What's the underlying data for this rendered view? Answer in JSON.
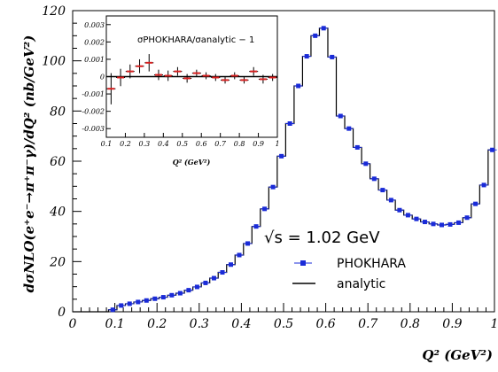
{
  "chart_data": [
    {
      "type": "line",
      "x_axis_label": "Q² (GeV²)",
      "y_axis_label": "dσNLO(e⁺e⁻→π⁺π⁻γ)/dQ² (nb/GeV²)",
      "xlim": [
        0,
        1
      ],
      "ylim": [
        0,
        120
      ],
      "x_ticks": [
        "0",
        "0.1",
        "0.2",
        "0.3",
        "0.4",
        "0.5",
        "0.6",
        "0.7",
        "0.8",
        "0.9",
        "1"
      ],
      "y_ticks": [
        "0",
        "20",
        "40",
        "60",
        "80",
        "100",
        "120"
      ],
      "annotation": "√s = 1.02 GeV",
      "legend": [
        {
          "label": "PHOKHARA",
          "style": "marker",
          "color": "#1a2bd8"
        },
        {
          "label": "analytic",
          "style": "line",
          "color": "#000000"
        }
      ],
      "series": [
        {
          "name": "PHOKHARA",
          "x": [
            0.095,
            0.115,
            0.135,
            0.155,
            0.175,
            0.195,
            0.215,
            0.235,
            0.255,
            0.275,
            0.295,
            0.315,
            0.335,
            0.355,
            0.375,
            0.395,
            0.415,
            0.435,
            0.455,
            0.475,
            0.495,
            0.515,
            0.535,
            0.555,
            0.575,
            0.595,
            0.615,
            0.635,
            0.655,
            0.675,
            0.695,
            0.715,
            0.735,
            0.755,
            0.775,
            0.795,
            0.815,
            0.835,
            0.855,
            0.875,
            0.895,
            0.915,
            0.935,
            0.955,
            0.975,
            0.995
          ],
          "y": [
            0.8,
            2.5,
            3.2,
            3.9,
            4.5,
            5.2,
            5.8,
            6.6,
            7.4,
            8.6,
            9.9,
            11.5,
            13.4,
            15.7,
            18.8,
            22.6,
            27.2,
            34.0,
            41.0,
            49.7,
            62.0,
            75.0,
            90.0,
            101.8,
            110.0,
            113.0,
            101.5,
            78.0,
            73.0,
            65.5,
            59.0,
            53.0,
            48.5,
            44.5,
            40.5,
            38.5,
            37.0,
            35.8,
            35.0,
            34.6,
            34.8,
            35.5,
            37.5,
            43.0,
            50.5,
            64.5
          ]
        },
        {
          "name": "analytic",
          "type": "step",
          "x_edges": [
            0.085,
            0.105,
            0.125,
            0.145,
            0.165,
            0.185,
            0.205,
            0.225,
            0.245,
            0.265,
            0.285,
            0.305,
            0.325,
            0.345,
            0.365,
            0.385,
            0.405,
            0.425,
            0.445,
            0.465,
            0.485,
            0.505,
            0.525,
            0.545,
            0.565,
            0.585,
            0.605,
            0.625,
            0.645,
            0.665,
            0.685,
            0.705,
            0.725,
            0.745,
            0.765,
            0.785,
            0.805,
            0.825,
            0.845,
            0.865,
            0.885,
            0.905,
            0.925,
            0.945,
            0.965,
            0.985,
            1.0
          ],
          "y": [
            0.8,
            2.5,
            3.2,
            3.9,
            4.5,
            5.2,
            5.8,
            6.6,
            7.4,
            8.6,
            9.9,
            11.5,
            13.4,
            15.7,
            18.8,
            22.6,
            27.2,
            34.0,
            41.0,
            49.7,
            62.0,
            75.0,
            90.0,
            101.8,
            110.0,
            113.0,
            101.5,
            78.0,
            73.0,
            65.5,
            59.0,
            53.0,
            48.5,
            44.5,
            40.5,
            38.5,
            37.0,
            35.8,
            35.0,
            34.6,
            34.8,
            35.5,
            37.5,
            43.0,
            50.5,
            64.5
          ]
        }
      ]
    },
    {
      "type": "scatter",
      "title": "σPHOKHARA/σanalytic − 1",
      "x_axis_label": "Q² (GeV²)",
      "xlim": [
        0.1,
        1.0
      ],
      "ylim": [
        -0.0035,
        0.0035
      ],
      "x_ticks": [
        "0.1",
        "0.2",
        "0.3",
        "0.4",
        "0.5",
        "0.6",
        "0.7",
        "0.8",
        "0.9",
        "1"
      ],
      "y_ticks": [
        "-0.003",
        "-0.002",
        "-0.001",
        "0",
        "0.001",
        "0.002",
        "0.003"
      ],
      "reference_line": 0,
      "series": [
        {
          "name": "PHOKHARA",
          "color": "#d81e1e",
          "x": [
            0.125,
            0.175,
            0.225,
            0.275,
            0.325,
            0.375,
            0.425,
            0.475,
            0.525,
            0.575,
            0.625,
            0.675,
            0.725,
            0.775,
            0.825,
            0.875,
            0.925,
            0.975
          ],
          "y": [
            -0.0007,
            -5e-05,
            0.0003,
            0.0006,
            0.0008,
            0.0001,
            5e-05,
            0.0003,
            -0.0001,
            0.0002,
            5e-05,
            -5e-05,
            -0.0002,
            5e-05,
            -0.0002,
            0.0003,
            -0.00015,
            -5e-05
          ],
          "err": [
            0.0009,
            0.0005,
            0.0004,
            0.0004,
            0.0005,
            0.0003,
            0.0003,
            0.00025,
            0.00025,
            0.0002,
            0.0002,
            0.0002,
            0.0002,
            0.0002,
            0.0002,
            0.00025,
            0.00025,
            0.0002
          ]
        }
      ]
    }
  ]
}
